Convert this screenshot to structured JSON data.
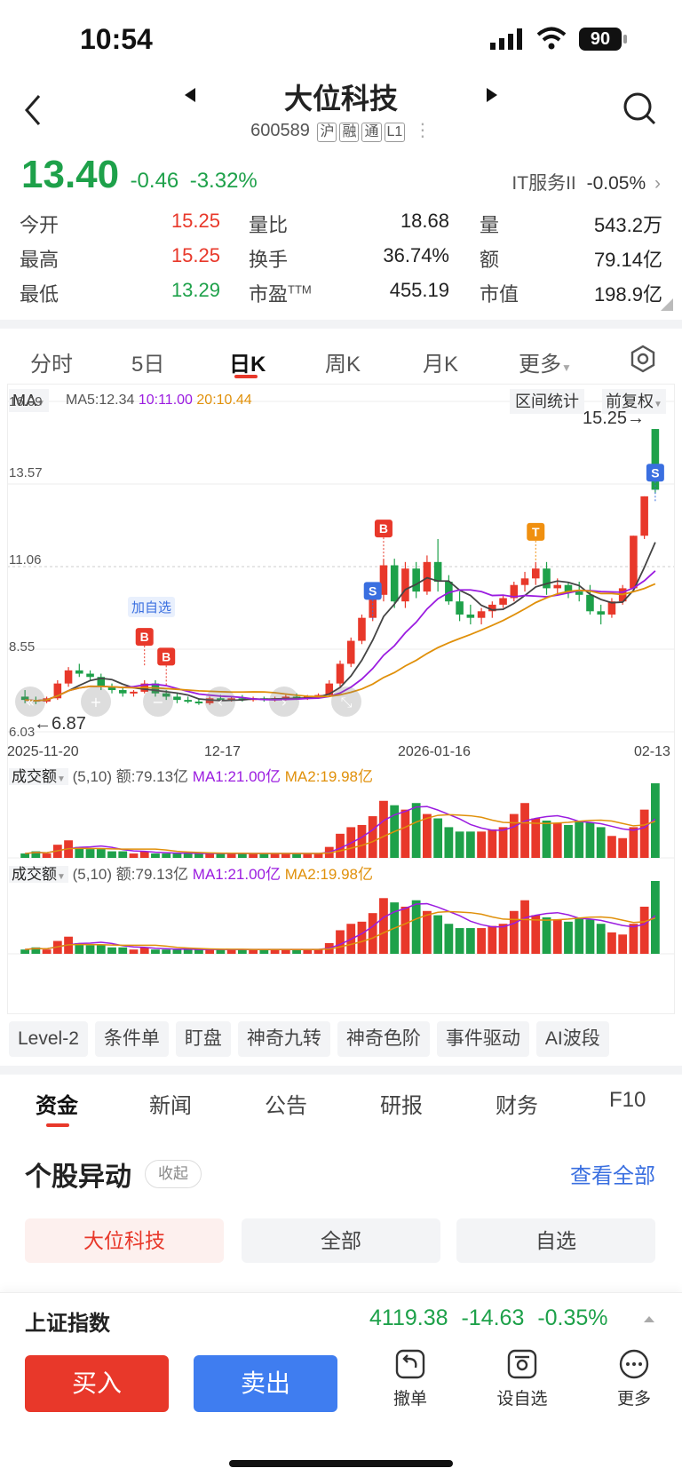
{
  "status_bar": {
    "time": "10:54",
    "battery": "90"
  },
  "header": {
    "title": "大位科技",
    "code": "600589",
    "tags": [
      "沪",
      "融",
      "通",
      "L1"
    ]
  },
  "quote": {
    "price": "13.40",
    "change": "-0.46",
    "change_pct": "-3.32%",
    "sector": "IT服务II",
    "sector_change": "-0.05%"
  },
  "stats": [
    {
      "l1": "今开",
      "v1": "15.25",
      "l2": "量比",
      "v2": "18.68",
      "l3": "量",
      "v3": "543.2万"
    },
    {
      "l1": "最高",
      "v1": "15.25",
      "l2": "换手",
      "v2": "36.74%",
      "l3": "额",
      "v3": "79.14亿"
    },
    {
      "l1": "最低",
      "v1": "13.29",
      "l2": "市盈TTM",
      "v2": "455.19",
      "l3": "市值",
      "v3": "198.9亿"
    }
  ],
  "chart_tabs": [
    "分时",
    "5日",
    "日K",
    "周K",
    "月K",
    "更多"
  ],
  "chart_bar": {
    "ma_label": "MA",
    "ma5": "MA5:12.34",
    "ma10": "10:11.00",
    "ma20": "20:10.44",
    "range_stats": "区间统计",
    "adjust": "前复权"
  },
  "price_axis": [
    "16.09",
    "13.57",
    "11.06",
    "8.55",
    "6.03"
  ],
  "date_axis": [
    "2025-11-20",
    "12-17",
    "2026-01-16",
    "02-13"
  ],
  "annotations": {
    "high": "15.25→",
    "low": "←6.87",
    "add_watch": "加自选",
    "b_marker": "B",
    "s_marker": "S",
    "t_marker": "T"
  },
  "vol_panel": {
    "label": "成交额",
    "params": "(5,10)",
    "amount": "额:79.13亿",
    "ma1": "MA1:21.00亿",
    "ma2": "MA2:19.98亿"
  },
  "tools": [
    "Level-2",
    "条件单",
    "盯盘",
    "神奇九转",
    "神奇色阶",
    "事件驱动",
    "AI波段"
  ],
  "sub_tabs": [
    "资金",
    "新闻",
    "公告",
    "研报",
    "财务",
    "F10"
  ],
  "section": {
    "title": "个股异动",
    "collapse": "收起",
    "view_all": "查看全部",
    "filters": [
      "大位科技",
      "全部",
      "自选"
    ]
  },
  "index_bar": {
    "name": "上证指数",
    "value": "4119.38",
    "change": "-14.63",
    "pct": "-0.35%"
  },
  "actions": {
    "buy": "买入",
    "sell": "卖出",
    "cancel": "撤单",
    "set_watch": "设自选",
    "more": "更多"
  },
  "chart_data": {
    "type": "candlestick",
    "ylim": [
      6.03,
      16.09
    ],
    "price_ticks": [
      16.09,
      13.57,
      11.06,
      8.55,
      6.03
    ],
    "x_labels": [
      "2025-11-20",
      "12-17",
      "2026-01-16",
      "02-13"
    ],
    "candles": [
      [
        7.1,
        7.3,
        6.9,
        7.0
      ],
      [
        7.0,
        7.1,
        6.87,
        6.95
      ],
      [
        6.95,
        7.1,
        6.9,
        7.05
      ],
      [
        7.05,
        7.6,
        7.0,
        7.5
      ],
      [
        7.5,
        8.0,
        7.4,
        7.9
      ],
      [
        7.9,
        8.1,
        7.7,
        7.8
      ],
      [
        7.8,
        7.9,
        7.6,
        7.7
      ],
      [
        7.7,
        7.8,
        7.3,
        7.4
      ],
      [
        7.4,
        7.5,
        7.2,
        7.3
      ],
      [
        7.3,
        7.4,
        7.1,
        7.2
      ],
      [
        7.2,
        7.3,
        7.1,
        7.25
      ],
      [
        7.25,
        7.6,
        7.2,
        7.5
      ],
      [
        7.5,
        7.6,
        7.1,
        7.2
      ],
      [
        7.2,
        7.3,
        7.0,
        7.1
      ],
      [
        7.1,
        7.2,
        6.9,
        7.0
      ],
      [
        7.0,
        7.1,
        6.9,
        6.95
      ],
      [
        6.95,
        7.05,
        6.85,
        6.9
      ],
      [
        6.9,
        7.1,
        6.85,
        7.05
      ],
      [
        7.05,
        7.15,
        6.95,
        7.0
      ],
      [
        7.0,
        7.1,
        6.95,
        7.05
      ],
      [
        7.05,
        7.15,
        6.95,
        7.0
      ],
      [
        7.0,
        7.1,
        6.95,
        7.05
      ],
      [
        7.05,
        7.1,
        6.95,
        7.0
      ],
      [
        7.0,
        7.1,
        6.95,
        7.05
      ],
      [
        7.05,
        7.15,
        6.98,
        7.1
      ],
      [
        7.1,
        7.2,
        7.0,
        7.05
      ],
      [
        7.05,
        7.15,
        7.0,
        7.1
      ],
      [
        7.1,
        7.2,
        7.05,
        7.15
      ],
      [
        7.15,
        7.6,
        7.1,
        7.5
      ],
      [
        7.5,
        8.2,
        7.4,
        8.1
      ],
      [
        8.1,
        8.9,
        8.0,
        8.8
      ],
      [
        8.8,
        9.6,
        8.7,
        9.5
      ],
      [
        9.5,
        10.4,
        9.4,
        10.2
      ],
      [
        10.2,
        11.3,
        10.0,
        11.1
      ],
      [
        11.1,
        11.3,
        9.8,
        10.0
      ],
      [
        10.0,
        11.2,
        9.8,
        11.0
      ],
      [
        11.0,
        11.2,
        10.1,
        10.3
      ],
      [
        10.3,
        11.4,
        10.2,
        11.2
      ],
      [
        11.2,
        11.9,
        10.3,
        10.6
      ],
      [
        10.6,
        10.8,
        9.9,
        10.0
      ],
      [
        10.0,
        10.3,
        9.4,
        9.6
      ],
      [
        9.6,
        9.9,
        9.3,
        9.5
      ],
      [
        9.5,
        9.8,
        9.3,
        9.7
      ],
      [
        9.7,
        10.0,
        9.5,
        9.9
      ],
      [
        9.9,
        10.2,
        9.8,
        10.1
      ],
      [
        10.1,
        10.6,
        10.0,
        10.5
      ],
      [
        10.5,
        10.9,
        10.3,
        10.7
      ],
      [
        10.7,
        11.2,
        10.5,
        11.0
      ],
      [
        11.0,
        11.2,
        10.2,
        10.4
      ],
      [
        10.4,
        10.7,
        10.2,
        10.5
      ],
      [
        10.5,
        10.6,
        10.1,
        10.3
      ],
      [
        10.3,
        10.6,
        10.0,
        10.2
      ],
      [
        10.2,
        10.5,
        9.6,
        9.7
      ],
      [
        9.7,
        9.9,
        9.3,
        9.6
      ],
      [
        9.6,
        10.1,
        9.5,
        10.0
      ],
      [
        10.0,
        10.5,
        9.9,
        10.4
      ],
      [
        10.4,
        12.0,
        10.3,
        12.0
      ],
      [
        12.0,
        13.2,
        11.9,
        13.2
      ],
      [
        15.25,
        15.25,
        13.29,
        13.4
      ]
    ],
    "volume": [
      2,
      3,
      2,
      6,
      8,
      5,
      4,
      4,
      3,
      3,
      2,
      3,
      2,
      2,
      2,
      2,
      2,
      2,
      2,
      2,
      2,
      2,
      2,
      2,
      2,
      2,
      2,
      2,
      5,
      11,
      14,
      15,
      19,
      26,
      24,
      22,
      25,
      20,
      18,
      14,
      12,
      12,
      12,
      13,
      14,
      20,
      25,
      18,
      17,
      16,
      15,
      17,
      16,
      14,
      10,
      9,
      14,
      22,
      34
    ],
    "ma5": "12.34",
    "ma10": "11.00",
    "ma20": "10.44"
  }
}
